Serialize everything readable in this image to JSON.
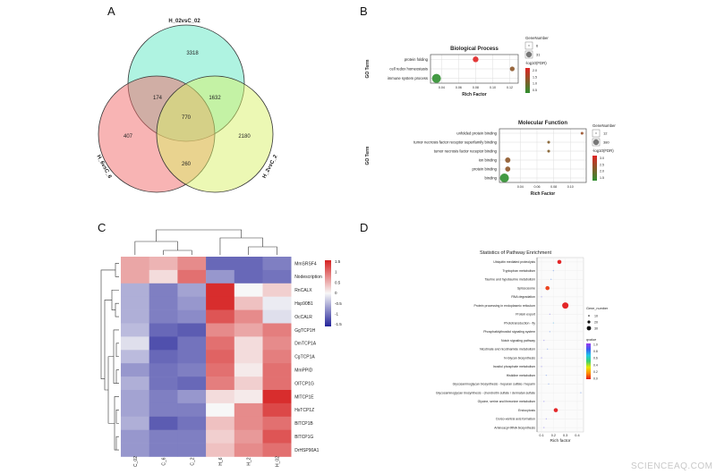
{
  "panels": {
    "a": "A",
    "b": "B",
    "c": "C",
    "d": "D"
  },
  "watermark": "SCIENCEAQ.COM",
  "chart_data": [
    {
      "type": "venn",
      "sets": [
        {
          "name": "H_02vsC_02",
          "color": "#5fe8c4"
        },
        {
          "name": "H_6vsC_6",
          "color": "#f26a6a"
        },
        {
          "name": "H_2vsC_2",
          "color": "#d9f26a"
        }
      ],
      "regions": [
        {
          "sets": [
            "H_02vsC_02"
          ],
          "count": 3318
        },
        {
          "sets": [
            "H_02vsC_02",
            "H_6vsC_6"
          ],
          "count": 174
        },
        {
          "sets": [
            "H_02vsC_02",
            "H_2vsC_2"
          ],
          "count": 1632
        },
        {
          "sets": [
            "H_02vsC_02",
            "H_6vsC_6",
            "H_2vsC_2"
          ],
          "count": 770
        },
        {
          "sets": [
            "H_6vsC_6"
          ],
          "count": 407
        },
        {
          "sets": [
            "H_2vsC_2"
          ],
          "count": 2180
        },
        {
          "sets": [
            "H_6vsC_6",
            "H_2vsC_2"
          ],
          "count": 260
        }
      ]
    },
    {
      "type": "scatter",
      "title": "Biological Process",
      "xlabel": "Rich Factor",
      "ylabel": "GO Term",
      "xlim": [
        0.027,
        0.13
      ],
      "xticks": [
        "0.04",
        "0.06",
        "0.08",
        "0.10",
        "0.12"
      ],
      "grid": true,
      "points": [
        {
          "term": "protein folding",
          "rich_factor": 0.08,
          "gene_number": 10,
          "neg_log10_fdr": 2.0
        },
        {
          "term": "cell redox homeostasis",
          "rich_factor": 0.123,
          "gene_number": 6,
          "neg_log10_fdr": 1.3
        },
        {
          "term": "immune system process",
          "rich_factor": 0.034,
          "gene_number": 31,
          "neg_log10_fdr": 0.5
        }
      ],
      "size_legend": {
        "title": "GeneNumber",
        "values": [
          "6",
          "31"
        ]
      },
      "color_legend": {
        "title": "-log10(FDR)",
        "ticks": [
          "2.0",
          "1.5",
          "1.0",
          "0.5"
        ],
        "range": [
          0.5,
          2.0
        ],
        "low_color": "#2f8f2f",
        "high_color": "#e02424"
      }
    },
    {
      "type": "scatter",
      "title": "Molecular Function",
      "xlabel": "Rich Factor",
      "ylabel": "GO Term",
      "xlim": [
        0.015,
        0.119
      ],
      "xticks": [
        "0.04",
        "0.06",
        "0.08",
        "0.10"
      ],
      "grid": true,
      "points": [
        {
          "term": "unfolded protein binding",
          "rich_factor": 0.114,
          "gene_number": 12,
          "neg_log10_fdr": 2.4
        },
        {
          "term": "tumor necrosis factor receptor superfamily binding",
          "rich_factor": 0.074,
          "gene_number": 12,
          "neg_log10_fdr": 2.2
        },
        {
          "term": "tumor necrosis factor receptor binding",
          "rich_factor": 0.074,
          "gene_number": 12,
          "neg_log10_fdr": 2.2
        },
        {
          "term": "ion binding",
          "rich_factor": 0.025,
          "gene_number": 100,
          "neg_log10_fdr": 2.3
        },
        {
          "term": "protein binding",
          "rich_factor": 0.025,
          "gene_number": 90,
          "neg_log10_fdr": 2.3
        },
        {
          "term": "binding",
          "rich_factor": 0.021,
          "gene_number": 380,
          "neg_log10_fdr": 1.5
        }
      ],
      "size_legend": {
        "title": "GeneNumber",
        "values": [
          "12",
          "380"
        ]
      },
      "color_legend": {
        "title": "-log10(FDR)",
        "ticks": [
          "3.0",
          "2.5",
          "2.0",
          "1.5"
        ],
        "range": [
          1.5,
          3.0
        ],
        "low_color": "#2f8f2f",
        "high_color": "#e02424"
      }
    },
    {
      "type": "heatmap",
      "columns": [
        "C_02",
        "C_6",
        "C_2",
        "H_6",
        "H_2",
        "H_02"
      ],
      "rows": [
        "MmSRSF4",
        "Nodescription",
        "RnCALX",
        "Hsp90B1",
        "OcCALR",
        "GgTCP1H",
        "DmTCP1A",
        "CgTCP1A",
        "MmPPID",
        "OlTCP1G",
        "MlTCP1E",
        "HsTCP1Z",
        "BlTCP1B",
        "BlTCP1G",
        "DrHSP90A1"
      ],
      "values": [
        [
          0.6,
          0.5,
          0.8,
          -1.2,
          -1.2,
          -1.0
        ],
        [
          0.6,
          0.2,
          1.0,
          -0.8,
          -1.2,
          -1.1
        ],
        [
          -0.6,
          -1.0,
          -0.7,
          1.5,
          0.0,
          0.3
        ],
        [
          -0.6,
          -1.0,
          -0.8,
          1.5,
          0.4,
          -0.1
        ],
        [
          -0.6,
          -1.0,
          -0.9,
          1.2,
          0.8,
          -0.2
        ],
        [
          -0.5,
          -1.2,
          -1.3,
          0.8,
          0.6,
          0.9
        ],
        [
          -0.2,
          -1.4,
          -1.1,
          1.0,
          0.2,
          0.8
        ],
        [
          -0.5,
          -1.2,
          -1.1,
          1.1,
          0.2,
          0.9
        ],
        [
          -0.8,
          -1.1,
          -1.0,
          1.0,
          0.1,
          1.0
        ],
        [
          -0.6,
          -1.1,
          -1.2,
          0.9,
          0.3,
          1.0
        ],
        [
          -0.7,
          -1.0,
          -0.8,
          0.2,
          0.1,
          1.6
        ],
        [
          -0.7,
          -1.0,
          -1.0,
          0.0,
          0.8,
          1.3
        ],
        [
          -0.6,
          -1.3,
          -1.1,
          0.4,
          0.8,
          1.0
        ],
        [
          -0.8,
          -1.0,
          -1.0,
          0.3,
          0.7,
          1.2
        ],
        [
          -0.8,
          -1.0,
          -1.0,
          0.4,
          0.8,
          1.0
        ]
      ],
      "color_scale": {
        "ticks": [
          "1.5",
          "1",
          "0.5",
          "0",
          "-0.5",
          "-1",
          "-1.5"
        ],
        "range": [
          -1.5,
          1.5
        ],
        "low_color": "#24249a",
        "mid_color": "#f7f7f7",
        "high_color": "#d62222"
      }
    },
    {
      "type": "scatter",
      "title": "Statistics of Pathway Enrichment",
      "xlabel": "Rich factor",
      "xlim": [
        0.062,
        0.453
      ],
      "xticks": [
        "0.1",
        "0.2",
        "0.3",
        "0.4"
      ],
      "grid": true,
      "points": [
        {
          "pathway": "Ubiquitin mediated proteolysis",
          "rich_factor": 0.25,
          "gene_number": 20,
          "qvalue": 0.0
        },
        {
          "pathway": "Tryptophan metabolism",
          "rich_factor": 0.2,
          "gene_number": 10,
          "qvalue": 0.8
        },
        {
          "pathway": "Taurine and hypotaurine metabolism",
          "rich_factor": 0.18,
          "gene_number": 10,
          "qvalue": 0.8
        },
        {
          "pathway": "Spliceosome",
          "rich_factor": 0.15,
          "gene_number": 20,
          "qvalue": 0.05
        },
        {
          "pathway": "RNA degradation",
          "rich_factor": 0.1,
          "gene_number": 10,
          "qvalue": 0.9
        },
        {
          "pathway": "Protein processing in endoplasmic reticulum",
          "rich_factor": 0.3,
          "gene_number": 30,
          "qvalue": 0.0
        },
        {
          "pathway": "Protein export",
          "rich_factor": 0.17,
          "gene_number": 10,
          "qvalue": 0.9
        },
        {
          "pathway": "Phototransduction - fly",
          "rich_factor": 0.2,
          "gene_number": 10,
          "qvalue": 0.7
        },
        {
          "pathway": "Phosphatidylinositol signaling system",
          "rich_factor": 0.17,
          "gene_number": 10,
          "qvalue": 0.8
        },
        {
          "pathway": "Notch signaling pathway",
          "rich_factor": 0.12,
          "gene_number": 10,
          "qvalue": 0.9
        },
        {
          "pathway": "Nicotinate and nicotinamide metabolism",
          "rich_factor": 0.15,
          "gene_number": 10,
          "qvalue": 0.8
        },
        {
          "pathway": "N-Glycan biosynthesis",
          "rich_factor": 0.1,
          "gene_number": 10,
          "qvalue": 0.9
        },
        {
          "pathway": "Inositol phosphate metabolism",
          "rich_factor": 0.1,
          "gene_number": 10,
          "qvalue": 0.9
        },
        {
          "pathway": "Histidine metabolism",
          "rich_factor": 0.14,
          "gene_number": 10,
          "qvalue": 0.8
        },
        {
          "pathway": "Glycosaminoglycan biosynthesis - heparan sulfate / heparin",
          "rich_factor": 0.16,
          "gene_number": 10,
          "qvalue": 0.8
        },
        {
          "pathway": "Glycosaminoglycan biosynthesis - chondroitin sulfate / dermatan sulfate",
          "rich_factor": 0.43,
          "gene_number": 10,
          "qvalue": 0.8
        },
        {
          "pathway": "Glycine, serine and threonine metabolism",
          "rich_factor": 0.12,
          "gene_number": 10,
          "qvalue": 0.9
        },
        {
          "pathway": "Endocytosis",
          "rich_factor": 0.22,
          "gene_number": 20,
          "qvalue": 0.0
        },
        {
          "pathway": "Dorso-ventral axis formation",
          "rich_factor": 0.14,
          "gene_number": 10,
          "qvalue": 0.9
        },
        {
          "pathway": "Aminoacyl-tRNA biosynthesis",
          "rich_factor": 0.12,
          "gene_number": 10,
          "qvalue": 0.9
        }
      ],
      "size_legend": {
        "title": "Gene_number",
        "values": [
          "10",
          "20",
          "30"
        ]
      },
      "color_legend": {
        "title": "qvalue",
        "ticks": [
          "1.0",
          "0.8",
          "0.6",
          "0.4",
          "0.2",
          "0.0"
        ],
        "range": [
          0,
          1
        ]
      }
    }
  ]
}
